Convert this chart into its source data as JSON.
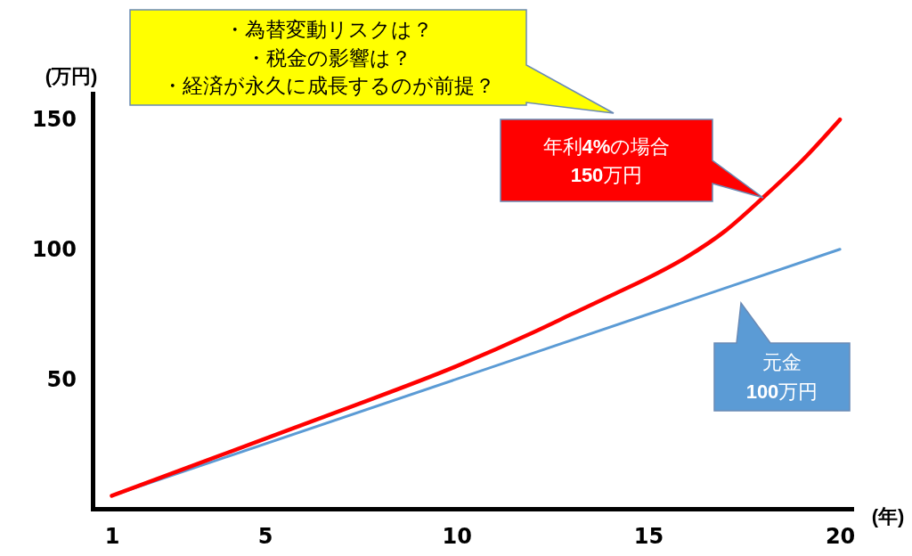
{
  "chart_data": {
    "type": "line",
    "ylabel": "(万円)",
    "xlabel": "(年)",
    "xlim": [
      0.5,
      20.3
    ],
    "xticks": [
      1,
      5,
      10,
      15,
      20
    ],
    "ylim": [
      0,
      160
    ],
    "yticks": [
      50,
      100,
      150
    ],
    "line_style": "solid",
    "series": [
      {
        "color": "#5b9bd5",
        "x": [
          1,
          20
        ],
        "values": [
          5,
          100
        ]
      },
      {
        "color": "#ff0000",
        "x": [
          1,
          3,
          5,
          7,
          10,
          12,
          13,
          14,
          15,
          16,
          17,
          18,
          19,
          20
        ],
        "values": [
          5,
          16,
          27,
          38,
          55,
          68,
          75,
          82,
          89,
          97,
          107,
          120,
          134,
          150
        ]
      }
    ],
    "annotations": [
      "・為替変動リスクは？",
      "・税金の影響は？",
      "・経済が永久に成長するのが前提？",
      "年利4%の場合\n150万円",
      "元金\n100万円"
    ]
  }
}
